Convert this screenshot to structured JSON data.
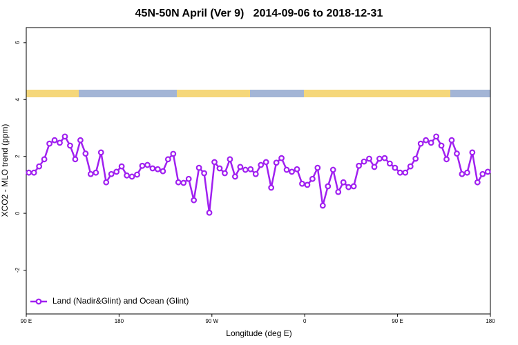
{
  "chart_data": {
    "type": "line",
    "title": "45N-50N April (Ver 9)   2014-09-06 to 2018-12-31",
    "x_label": "Longitude (deg E)",
    "y_label": "XCO2 - MLO trend (ppm)",
    "xlim": [
      90,
      540
    ],
    "ylim": [
      -3.54,
      6.53
    ],
    "xticks": [
      {
        "value": 90,
        "label": "90 E"
      },
      {
        "value": 180,
        "label": "180"
      },
      {
        "value": 270,
        "label": "90 W"
      },
      {
        "value": 360,
        "label": "0"
      },
      {
        "value": 450,
        "label": "90 E"
      },
      {
        "value": 540,
        "label": "180"
      }
    ],
    "yticks": [
      -2,
      0,
      2,
      4,
      6
    ],
    "grid": false,
    "legend": "bottomleft",
    "x": [
      92.5,
      97.5,
      102.5,
      107.5,
      112.5,
      117.5,
      122.5,
      127.5,
      132.5,
      137.5,
      142.5,
      147.5,
      152.5,
      157.5,
      162.5,
      167.5,
      172.5,
      177.5,
      182.5,
      187.5,
      192.5,
      197.5,
      202.5,
      207.5,
      212.5,
      217.5,
      222.5,
      227.5,
      232.5,
      237.5,
      242.5,
      247.5,
      252.5,
      257.5,
      262.5,
      267.5,
      272.5,
      277.5,
      282.5,
      287.5,
      292.5,
      297.5,
      302.5,
      307.5,
      312.5,
      317.5,
      322.5,
      327.5,
      332.5,
      337.5,
      342.5,
      347.5,
      352.5,
      357.5,
      362.5,
      367.5,
      372.5,
      377.5,
      382.5,
      387.5,
      392.5,
      397.5,
      402.5,
      407.5,
      412.5,
      417.5,
      422.5,
      427.5,
      432.5,
      437.5,
      442.5,
      447.5,
      452.5,
      457.5,
      462.5,
      467.5,
      472.5,
      477.5,
      482.5,
      487.5,
      492.5,
      497.5,
      502.5,
      507.5,
      512.5,
      517.5,
      522.5,
      527.5,
      532.5,
      537.5
    ],
    "series": [
      {
        "name": "Land (Nadir&Glint) and Ocean (Glint)",
        "color": "#a020f0",
        "values": [
          1.43,
          1.43,
          1.65,
          1.9,
          2.45,
          2.57,
          2.48,
          2.7,
          2.38,
          1.9,
          2.57,
          2.1,
          1.38,
          1.43,
          2.14,
          1.09,
          1.38,
          1.46,
          1.65,
          1.33,
          1.29,
          1.36,
          1.67,
          1.7,
          1.58,
          1.55,
          1.48,
          1.9,
          2.09,
          1.09,
          1.07,
          1.21,
          0.46,
          1.6,
          1.41,
          0.02,
          1.8,
          1.58,
          1.41,
          1.9,
          1.29,
          1.63,
          1.53,
          1.55,
          1.38,
          1.7,
          1.8,
          0.9,
          1.78,
          1.94,
          1.53,
          1.46,
          1.55,
          1.04,
          1.0,
          1.21,
          1.6,
          0.27,
          0.95,
          1.53,
          0.75,
          1.09,
          0.92,
          0.95,
          1.67,
          1.82,
          1.92,
          1.63,
          1.92,
          1.94,
          1.75,
          1.6,
          1.43,
          1.43,
          1.65,
          1.92,
          2.45,
          2.57,
          2.48,
          2.7,
          2.38,
          1.9,
          2.57,
          2.1,
          1.38,
          1.43,
          2.14,
          1.09,
          1.38,
          1.46
        ]
      }
    ]
  }
}
